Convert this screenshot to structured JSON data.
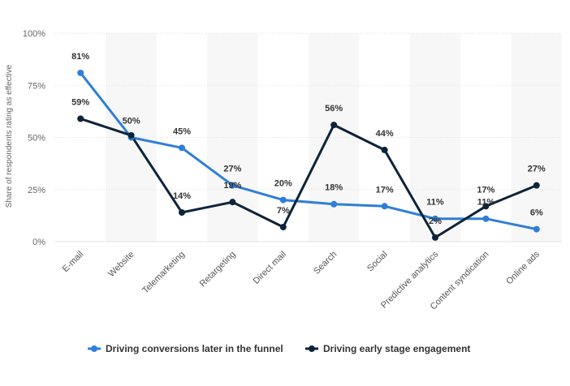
{
  "chart_data": {
    "type": "line",
    "title": "",
    "xlabel": "",
    "ylabel": "Share of respondents rating as effective",
    "ylim": [
      0,
      100
    ],
    "yticks": [
      0,
      25,
      50,
      75,
      100
    ],
    "ytick_labels": [
      "0%",
      "25%",
      "50%",
      "75%",
      "100%"
    ],
    "categories": [
      "E-mail",
      "Website",
      "Telemarketing",
      "Retargeting",
      "Direct mail",
      "Search",
      "Social",
      "Predictive analytics",
      "Content syndication",
      "Online ads"
    ],
    "series": [
      {
        "name": "Driving conversions later in the funnel",
        "color": "#2f7ed8",
        "values": [
          81,
          50,
          45,
          27,
          20,
          18,
          17,
          11,
          11,
          6
        ],
        "labels": [
          "81%",
          "50%",
          "45%",
          "27%",
          "20%",
          "18%",
          "17%",
          "11%",
          "11%",
          "6%"
        ]
      },
      {
        "name": "Driving early stage engagement",
        "color": "#0d233a",
        "values": [
          59,
          51,
          14,
          19,
          7,
          56,
          44,
          2,
          17,
          27
        ],
        "labels": [
          "59%",
          "",
          "14%",
          "19%",
          "7%",
          "56%",
          "44%",
          "2%",
          "17%",
          "27%"
        ]
      }
    ],
    "grid": true,
    "legend": "bottom-center"
  }
}
